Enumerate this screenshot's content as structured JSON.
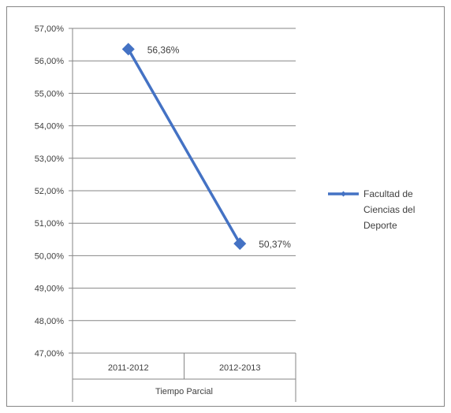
{
  "chart_data": {
    "type": "line",
    "title": "",
    "xlabel": "",
    "ylabel": "",
    "x_group_label": "Tiempo Parcial",
    "categories": [
      "2011-2012",
      "2012-2013"
    ],
    "series": [
      {
        "name": "Facultad de Ciencias del Deporte",
        "name_lines": [
          "Facultad de",
          "Ciencias del",
          "Deporte"
        ],
        "values": [
          56.36,
          50.37
        ],
        "data_labels": [
          "56,36%",
          "50,37%"
        ],
        "color": "#4472C4",
        "marker": "diamond"
      }
    ],
    "ylim": [
      47,
      57
    ],
    "yticks": [
      57,
      56,
      55,
      54,
      53,
      52,
      51,
      50,
      49,
      48,
      47
    ],
    "ytick_labels": [
      "57,00%",
      "56,00%",
      "55,00%",
      "54,00%",
      "53,00%",
      "52,00%",
      "51,00%",
      "50,00%",
      "49,00%",
      "48,00%",
      "47,00%"
    ],
    "grid": true,
    "legend_position": "right"
  }
}
